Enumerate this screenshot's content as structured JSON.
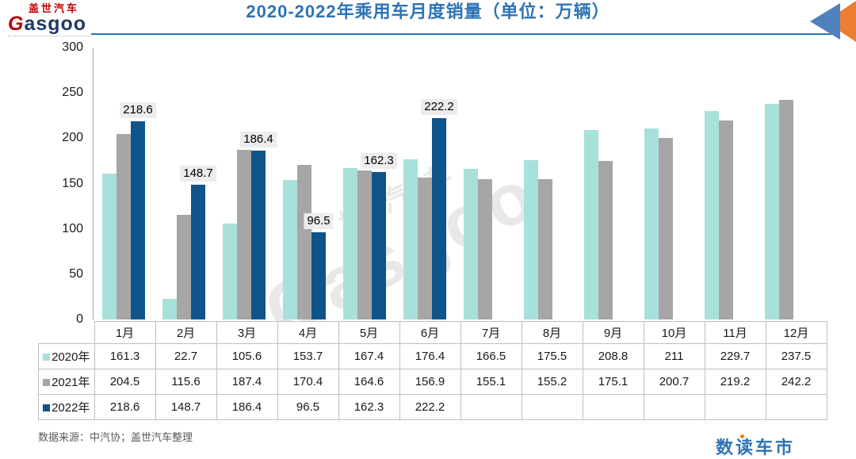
{
  "header": {
    "logo": {
      "cn": "盖世汽车",
      "en": "Gasgoo"
    },
    "title": "2020-2022年乘用车月度销量（单位：万辆）"
  },
  "watermark": {
    "cn": "盖世汽车",
    "en": "Gasgoo"
  },
  "chart_data": {
    "type": "bar",
    "title": "2020-2022年乘用车月度销量（单位：万辆）",
    "categories": [
      "1月",
      "2月",
      "3月",
      "4月",
      "5月",
      "6月",
      "7月",
      "8月",
      "9月",
      "10月",
      "11月",
      "12月"
    ],
    "series": [
      {
        "name": "2020年",
        "color": "#a8e0da",
        "values": [
          161.3,
          22.7,
          105.6,
          153.7,
          167.4,
          176.4,
          166.5,
          175.5,
          208.8,
          211,
          229.7,
          237.5
        ]
      },
      {
        "name": "2021年",
        "color": "#a6a6a6",
        "values": [
          204.5,
          115.6,
          187.4,
          170.4,
          164.6,
          156.9,
          155.1,
          155.2,
          175.1,
          200.7,
          219.2,
          242.2
        ]
      },
      {
        "name": "2022年",
        "color": "#0f538b",
        "data_labels": true,
        "values": [
          218.6,
          148.7,
          186.4,
          96.5,
          162.3,
          222.2,
          null,
          null,
          null,
          null,
          null,
          null
        ]
      }
    ],
    "ylim": [
      0,
      300
    ],
    "ytick_step": 50,
    "grid": false,
    "legend_position": "data-table-left",
    "data_table_shown": true
  },
  "footer": {
    "source": "数据来源：中汽协；盖世汽车整理",
    "brand": "数读车市"
  }
}
